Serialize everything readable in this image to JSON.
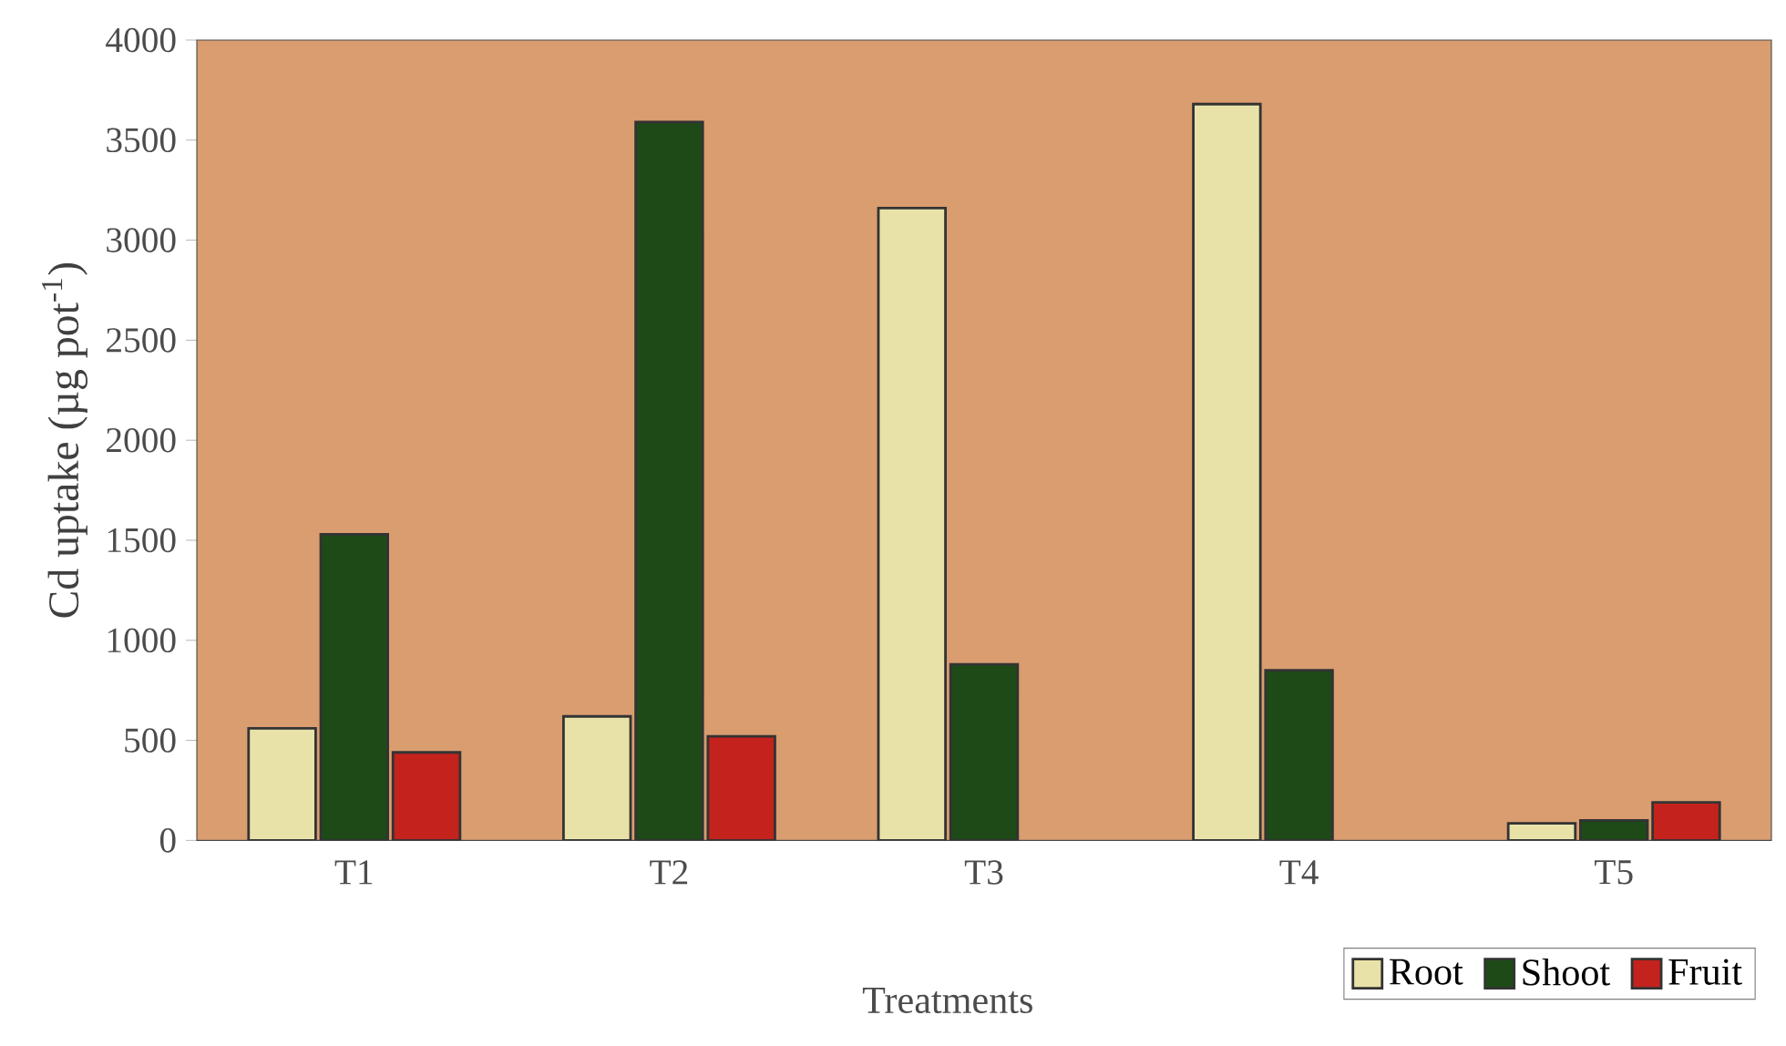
{
  "chart_data": {
    "type": "bar",
    "xlabel": "Treatments",
    "ylabel": "Cd uptake (µg pot$^{-1}$)",
    "categories": [
      "T1",
      "T2",
      "T3",
      "T4",
      "T5"
    ],
    "series": [
      {
        "name": "Root",
        "color": "#e8e2a8",
        "values": [
          560,
          620,
          3160,
          3680,
          85
        ]
      },
      {
        "name": "Shoot",
        "color": "#1e4a18",
        "values": [
          1530,
          3590,
          880,
          850,
          100
        ]
      },
      {
        "name": "Fruit",
        "color": "#c4221c",
        "values": [
          440,
          520,
          null,
          null,
          190
        ]
      }
    ],
    "ylim": [
      0,
      4000
    ],
    "yticks": [
      0,
      500,
      1000,
      1500,
      2000,
      2500,
      3000,
      3500,
      4000
    ],
    "grid": false,
    "legend": "bottom right"
  }
}
